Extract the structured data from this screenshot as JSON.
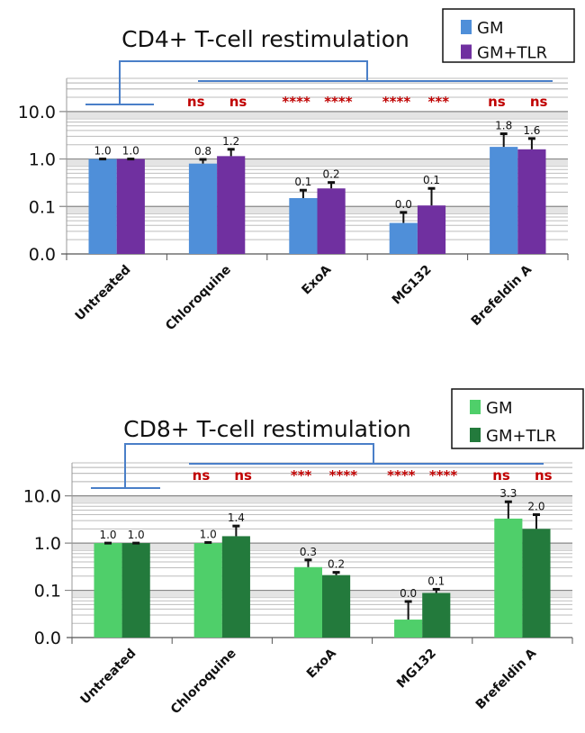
{
  "chart_data": [
    {
      "type": "bar",
      "title": "CD4+ T-cell restimulation",
      "yscale": "log",
      "ylim": [
        0.01,
        50
      ],
      "yticks": [
        0.01,
        0.1,
        1,
        10
      ],
      "ytick_labels": [
        "0.0",
        "0.1",
        "1.0",
        "10.0"
      ],
      "grid": true,
      "legend_position": "top-right",
      "categories": [
        "Untreated",
        "Chloroquine",
        "ExoA",
        "MG132",
        "Brefeldin A"
      ],
      "series": [
        {
          "name": "GM",
          "color": "#4f8fd9",
          "values": [
            1.0,
            0.8,
            0.15,
            0.045,
            1.8
          ],
          "error_top": [
            1.0,
            0.98,
            0.22,
            0.075,
            3.4
          ],
          "labels": [
            "1.0",
            "0.8",
            "0.1",
            "0.0",
            "1.8"
          ],
          "significance": [
            "",
            "ns",
            "****",
            "****",
            "ns"
          ]
        },
        {
          "name": "GM+TLR",
          "color": "#7030a0",
          "values": [
            1.0,
            1.15,
            0.24,
            0.105,
            1.6
          ],
          "error_top": [
            1.0,
            1.6,
            0.32,
            0.24,
            2.7
          ],
          "labels": [
            "1.0",
            "1.2",
            "0.2",
            "0.1",
            "1.6"
          ],
          "significance": [
            "",
            "ns",
            "****",
            "***",
            "ns"
          ]
        }
      ],
      "bracket_color": "#4a7fc8"
    },
    {
      "type": "bar",
      "title": "CD8+ T-cell restimulation",
      "yscale": "log",
      "ylim": [
        0.01,
        50
      ],
      "yticks": [
        0.01,
        0.1,
        1,
        10
      ],
      "ytick_labels": [
        "0.0",
        "0.1",
        "1.0",
        "10.0"
      ],
      "grid": true,
      "legend_position": "top-right",
      "categories": [
        "Untreated",
        "Chloroquine",
        "ExoA",
        "MG132",
        "Brefeldin A"
      ],
      "series": [
        {
          "name": "GM",
          "color": "#4fcf6a",
          "values": [
            1.0,
            1.0,
            0.31,
            0.024,
            3.3
          ],
          "error_top": [
            1.0,
            1.03,
            0.44,
            0.058,
            7.5
          ],
          "labels": [
            "1.0",
            "1.0",
            "0.3",
            "0.0",
            "3.3"
          ],
          "significance": [
            "",
            "ns",
            "***",
            "****",
            "ns"
          ]
        },
        {
          "name": "GM+TLR",
          "color": "#237a3c",
          "values": [
            1.0,
            1.4,
            0.21,
            0.088,
            2.0
          ],
          "error_top": [
            1.0,
            2.3,
            0.24,
            0.105,
            4.0
          ],
          "labels": [
            "1.0",
            "1.4",
            "0.2",
            "0.1",
            "2.0"
          ],
          "significance": [
            "",
            "ns",
            "****",
            "****",
            "ns"
          ]
        }
      ],
      "bracket_color": "#4a7fc8"
    }
  ]
}
